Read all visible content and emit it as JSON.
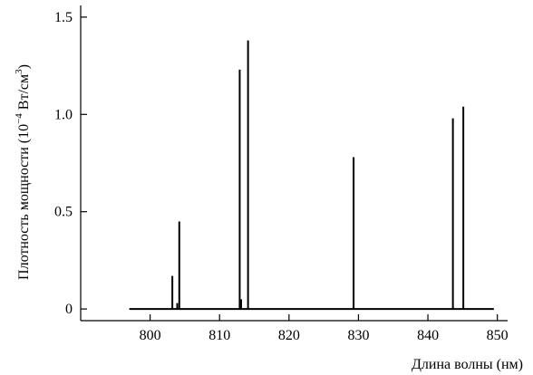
{
  "chart_data": {
    "type": "line",
    "title": "",
    "xlabel": "Длина волны (нм)",
    "ylabel": {
      "prefix": "Плотность мощности (10",
      "exp1": "−4",
      "middle": " Вт/см",
      "exp2": "3",
      "suffix": ")"
    },
    "xlim": [
      790,
      852
    ],
    "ylim": [
      -0.06,
      1.56
    ],
    "xticks": [
      800,
      810,
      820,
      830,
      840,
      850
    ],
    "yticks": [
      0,
      0.5,
      1.0,
      1.5
    ],
    "xtick_labels": [
      "800",
      "810",
      "820",
      "830",
      "840",
      "850"
    ],
    "ytick_labels": [
      "0",
      "0.5",
      "1.0",
      "1.5"
    ],
    "grid": false,
    "legend": "none",
    "baseline": {
      "x_start": 797,
      "x_end": 849.5,
      "y": 0
    },
    "series": [
      {
        "color": "#000000",
        "peaks": [
          {
            "x": 803.2,
            "y": 0.17
          },
          {
            "x": 803.9,
            "y": 0.03
          },
          {
            "x": 804.2,
            "y": 0.45
          },
          {
            "x": 812.9,
            "y": 1.23
          },
          {
            "x": 813.1,
            "y": 0.05
          },
          {
            "x": 814.1,
            "y": 1.38
          },
          {
            "x": 829.3,
            "y": 0.78
          },
          {
            "x": 843.6,
            "y": 0.98
          },
          {
            "x": 845.1,
            "y": 1.04
          }
        ]
      }
    ]
  }
}
